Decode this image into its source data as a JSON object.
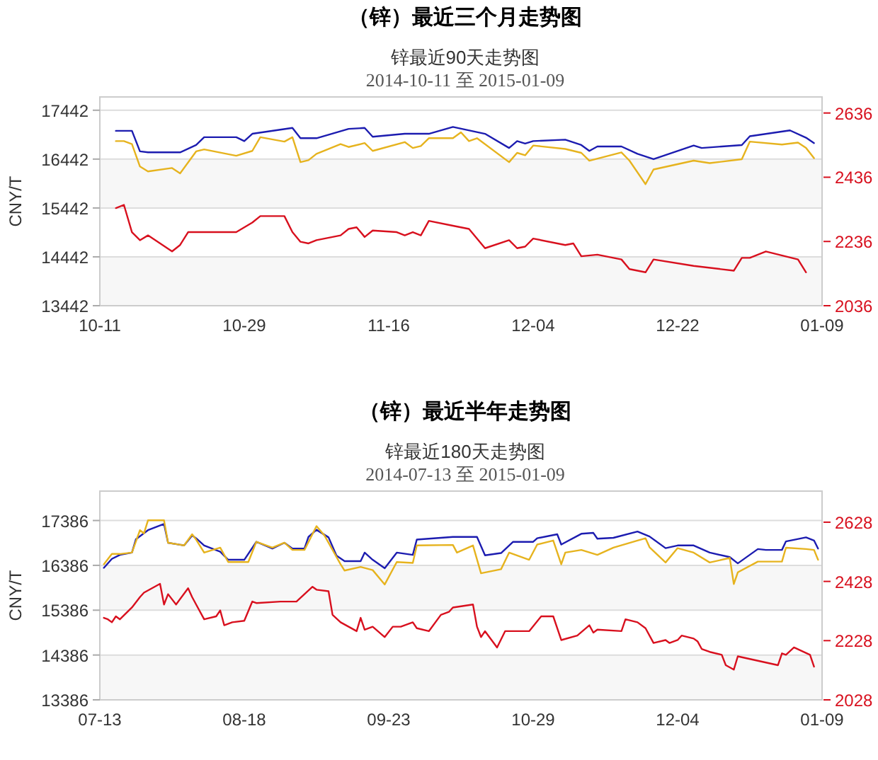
{
  "chart_data": [
    {
      "type": "line",
      "title": "（锌）最近三个月走势图",
      "subtitle": "锌最近90天走势图",
      "annotations": [
        "2014-10-11 至 2015-01-09"
      ],
      "ylabel": "CNY/T",
      "xlim": [
        "2014-10-11",
        "2015-01-09"
      ],
      "xticks": [
        {
          "value": "2014-10-11",
          "label": "10-11"
        },
        {
          "value": "2014-10-29",
          "label": "10-29"
        },
        {
          "value": "2014-11-16",
          "label": "11-16"
        },
        {
          "value": "2014-12-04",
          "label": "12-04"
        },
        {
          "value": "2014-12-22",
          "label": "12-22"
        },
        {
          "value": "2015-01-09",
          "label": "01-09"
        }
      ],
      "ylim": [
        13442,
        17714
      ],
      "yticks": [
        13442,
        14442,
        15442,
        16442,
        17442
      ],
      "y2lim": [
        2036,
        2686
      ],
      "y2ticks": [
        2036,
        2236,
        2436,
        2636
      ],
      "grid": "y",
      "bands": [
        {
          "axis": "y",
          "from": 15442,
          "to": 16442,
          "color": "#f7f7f7"
        },
        {
          "axis": "y",
          "from": 13442,
          "to": 14442,
          "color": "#f7f7f7"
        }
      ],
      "series": [
        {
          "color": "#1c1cb0",
          "x": [
            "2014-10-13",
            "2014-10-15",
            "2014-10-16",
            "2014-10-17",
            "2014-10-21",
            "2014-10-23",
            "2014-10-24",
            "2014-10-28",
            "2014-10-29",
            "2014-10-30",
            "2014-11-04",
            "2014-11-05",
            "2014-11-07",
            "2014-11-11",
            "2014-11-13",
            "2014-11-14",
            "2014-11-18",
            "2014-11-21",
            "2014-11-24",
            "2014-11-28",
            "2014-12-01",
            "2014-12-02",
            "2014-12-03",
            "2014-12-04",
            "2014-12-08",
            "2014-12-10",
            "2014-12-11",
            "2014-12-12",
            "2014-12-15",
            "2014-12-17",
            "2014-12-19",
            "2014-12-24",
            "2014-12-25",
            "2014-12-30",
            "2014-12-31",
            "2015-01-05",
            "2015-01-07",
            "2015-01-08"
          ],
          "values": [
            17020,
            17020,
            16600,
            16580,
            16580,
            16730,
            16890,
            16890,
            16810,
            16960,
            17080,
            16870,
            16870,
            17060,
            17080,
            16900,
            16960,
            16960,
            17100,
            16960,
            16670,
            16810,
            16760,
            16810,
            16840,
            16730,
            16610,
            16700,
            16700,
            16550,
            16440,
            16720,
            16670,
            16730,
            16910,
            17030,
            16880,
            16770
          ]
        },
        {
          "color": "#e6b31e",
          "x": [
            "2014-10-13",
            "2014-10-14",
            "2014-10-15",
            "2014-10-16",
            "2014-10-17",
            "2014-10-20",
            "2014-10-21",
            "2014-10-23",
            "2014-10-24",
            "2014-10-28",
            "2014-10-30",
            "2014-10-31",
            "2014-11-03",
            "2014-11-04",
            "2014-11-05",
            "2014-11-06",
            "2014-11-07",
            "2014-11-10",
            "2014-11-11",
            "2014-11-13",
            "2014-11-14",
            "2014-11-18",
            "2014-11-19",
            "2014-11-20",
            "2014-11-21",
            "2014-11-24",
            "2014-11-25",
            "2014-11-26",
            "2014-11-27",
            "2014-12-01",
            "2014-12-02",
            "2014-12-03",
            "2014-12-04",
            "2014-12-08",
            "2014-12-10",
            "2014-12-11",
            "2014-12-15",
            "2014-12-16",
            "2014-12-18",
            "2014-12-19",
            "2014-12-24",
            "2014-12-26",
            "2014-12-30",
            "2014-12-31",
            "2015-01-04",
            "2015-01-06",
            "2015-01-07",
            "2015-01-08"
          ],
          "values": [
            16810,
            16810,
            16750,
            16290,
            16190,
            16260,
            16150,
            16600,
            16640,
            16510,
            16610,
            16890,
            16800,
            16890,
            16380,
            16420,
            16550,
            16750,
            16690,
            16770,
            16610,
            16790,
            16670,
            16710,
            16870,
            16870,
            16990,
            16810,
            16870,
            16380,
            16570,
            16520,
            16720,
            16650,
            16570,
            16410,
            16580,
            16410,
            15930,
            16230,
            16410,
            16360,
            16440,
            16800,
            16740,
            16780,
            16670,
            16460
          ]
        },
        {
          "color": "#d8101e",
          "axis": "y2",
          "x": [
            "2014-10-13",
            "2014-10-14",
            "2014-10-15",
            "2014-10-16",
            "2014-10-17",
            "2014-10-20",
            "2014-10-21",
            "2014-10-22",
            "2014-10-28",
            "2014-10-29",
            "2014-10-30",
            "2014-10-31",
            "2014-11-03",
            "2014-11-04",
            "2014-11-05",
            "2014-11-06",
            "2014-11-07",
            "2014-11-10",
            "2014-11-11",
            "2014-11-12",
            "2014-11-13",
            "2014-11-14",
            "2014-11-17",
            "2014-11-18",
            "2014-11-19",
            "2014-11-20",
            "2014-11-21",
            "2014-11-24",
            "2014-11-25",
            "2014-11-26",
            "2014-11-28",
            "2014-12-01",
            "2014-12-02",
            "2014-12-03",
            "2014-12-04",
            "2014-12-08",
            "2014-12-09",
            "2014-12-10",
            "2014-12-12",
            "2014-12-15",
            "2014-12-16",
            "2014-12-17",
            "2014-12-18",
            "2014-12-19",
            "2014-12-24",
            "2014-12-29",
            "2014-12-30",
            "2014-12-31",
            "2015-01-02",
            "2015-01-06",
            "2015-01-07"
          ],
          "values": [
            2340,
            2350,
            2265,
            2240,
            2255,
            2205,
            2225,
            2265,
            2265,
            2280,
            2295,
            2315,
            2315,
            2265,
            2235,
            2230,
            2240,
            2255,
            2275,
            2280,
            2250,
            2270,
            2265,
            2255,
            2265,
            2255,
            2300,
            2285,
            2280,
            2275,
            2215,
            2240,
            2215,
            2220,
            2245,
            2225,
            2230,
            2190,
            2195,
            2180,
            2150,
            2145,
            2140,
            2180,
            2160,
            2145,
            2185,
            2185,
            2205,
            2180,
            2140
          ]
        }
      ]
    },
    {
      "type": "line",
      "title": "（锌）最近半年走势图",
      "subtitle": "锌最近180天走势图",
      "annotations": [
        "2014-07-13 至 2015-01-09"
      ],
      "ylabel": "CNY/T",
      "xlim": [
        "2014-07-13",
        "2015-01-09"
      ],
      "xticks": [
        {
          "value": "2014-07-13",
          "label": "07-13"
        },
        {
          "value": "2014-08-18",
          "label": "08-18"
        },
        {
          "value": "2014-09-23",
          "label": "09-23"
        },
        {
          "value": "2014-10-29",
          "label": "10-29"
        },
        {
          "value": "2014-12-04",
          "label": "12-04"
        },
        {
          "value": "2015-01-09",
          "label": "01-09"
        }
      ],
      "ylim": [
        13386,
        18042
      ],
      "yticks": [
        13386,
        14386,
        15386,
        16386,
        17386
      ],
      "y2lim": [
        2028,
        2733
      ],
      "y2ticks": [
        2028,
        2228,
        2428,
        2628
      ],
      "grid": "y",
      "bands": [
        {
          "axis": "y",
          "from": 15386,
          "to": 16386,
          "color": "#f7f7f7"
        },
        {
          "axis": "y",
          "from": 13386,
          "to": 14386,
          "color": "#f7f7f7"
        }
      ],
      "series": [
        {
          "color": "#1c1cb0",
          "x": [
            "2014-07-14",
            "2014-07-16",
            "2014-07-18",
            "2014-07-21",
            "2014-07-22",
            "2014-07-25",
            "2014-07-29",
            "2014-07-30",
            "2014-08-03",
            "2014-08-05",
            "2014-08-06",
            "2014-08-08",
            "2014-08-12",
            "2014-08-14",
            "2014-08-18",
            "2014-08-21",
            "2014-08-25",
            "2014-08-28",
            "2014-08-30",
            "2014-09-02",
            "2014-09-03",
            "2014-09-05",
            "2014-09-08",
            "2014-09-10",
            "2014-09-12",
            "2014-09-16",
            "2014-09-17",
            "2014-09-19",
            "2014-09-22",
            "2014-09-25",
            "2014-09-29",
            "2014-09-30",
            "2014-10-09",
            "2014-10-15",
            "2014-10-17",
            "2014-10-21",
            "2014-10-24",
            "2014-10-29",
            "2014-10-30",
            "2014-11-04",
            "2014-11-05",
            "2014-11-10",
            "2014-11-13",
            "2014-11-14",
            "2014-11-18",
            "2014-11-24",
            "2014-11-27",
            "2014-12-01",
            "2014-12-04",
            "2014-12-08",
            "2014-12-12",
            "2014-12-17",
            "2014-12-19",
            "2014-12-24",
            "2014-12-26",
            "2014-12-30",
            "2014-12-31",
            "2015-01-05",
            "2015-01-07",
            "2015-01-08"
          ],
          "values": [
            16330,
            16530,
            16620,
            16670,
            16970,
            17170,
            17310,
            16890,
            16830,
            17050,
            16990,
            16830,
            16690,
            16510,
            16510,
            16910,
            16760,
            16890,
            16760,
            16760,
            17020,
            17180,
            17010,
            16600,
            16480,
            16480,
            16670,
            16510,
            16320,
            16670,
            16620,
            16960,
            17020,
            17020,
            16610,
            16660,
            16910,
            16910,
            16990,
            17080,
            16850,
            17090,
            17110,
            16980,
            17000,
            17140,
            17030,
            16770,
            16830,
            16830,
            16670,
            16570,
            16430,
            16750,
            16730,
            16730,
            16920,
            17010,
            16940,
            16760
          ]
        },
        {
          "color": "#e6b31e",
          "x": [
            "2014-07-14",
            "2014-07-16",
            "2014-07-18",
            "2014-07-21",
            "2014-07-23",
            "2014-07-24",
            "2014-07-25",
            "2014-07-29",
            "2014-07-30",
            "2014-08-03",
            "2014-08-05",
            "2014-08-06",
            "2014-08-08",
            "2014-08-12",
            "2014-08-14",
            "2014-08-19",
            "2014-08-21",
            "2014-08-25",
            "2014-08-28",
            "2014-08-30",
            "2014-09-02",
            "2014-09-05",
            "2014-09-07",
            "2014-09-11",
            "2014-09-12",
            "2014-09-16",
            "2014-09-19",
            "2014-09-22",
            "2014-09-25",
            "2014-09-29",
            "2014-09-30",
            "2014-10-09",
            "2014-10-10",
            "2014-10-14",
            "2014-10-16",
            "2014-10-21",
            "2014-10-23",
            "2014-10-28",
            "2014-10-30",
            "2014-11-03",
            "2014-11-05",
            "2014-11-06",
            "2014-11-10",
            "2014-11-14",
            "2014-11-18",
            "2014-11-24",
            "2014-11-26",
            "2014-11-27",
            "2014-12-01",
            "2014-12-04",
            "2014-12-08",
            "2014-12-12",
            "2014-12-17",
            "2014-12-18",
            "2014-12-19",
            "2014-12-24",
            "2014-12-30",
            "2014-12-31",
            "2015-01-05",
            "2015-01-07",
            "2015-01-08"
          ],
          "values": [
            16410,
            16640,
            16640,
            16670,
            17170,
            17100,
            17390,
            17390,
            16890,
            16830,
            17080,
            16960,
            16670,
            16780,
            16460,
            16460,
            16910,
            16780,
            16890,
            16730,
            16730,
            17260,
            17050,
            16410,
            16270,
            16350,
            16280,
            15960,
            16460,
            16440,
            16830,
            16840,
            16670,
            16830,
            16210,
            16300,
            16670,
            16510,
            16850,
            16940,
            16410,
            16670,
            16730,
            16620,
            16780,
            16940,
            16990,
            16790,
            16450,
            16770,
            16670,
            16450,
            16550,
            15970,
            16230,
            16470,
            16470,
            16780,
            16750,
            16730,
            16510
          ]
        },
        {
          "color": "#d8101e",
          "axis": "y2",
          "x": [
            "2014-07-14",
            "2014-07-15",
            "2014-07-16",
            "2014-07-17",
            "2014-07-18",
            "2014-07-21",
            "2014-07-23",
            "2014-07-24",
            "2014-07-28",
            "2014-07-29",
            "2014-07-30",
            "2014-08-01",
            "2014-08-04",
            "2014-08-05",
            "2014-08-06",
            "2014-08-08",
            "2014-08-11",
            "2014-08-12",
            "2014-08-13",
            "2014-08-15",
            "2014-08-18",
            "2014-08-20",
            "2014-08-21",
            "2014-08-27",
            "2014-08-31",
            "2014-09-02",
            "2014-09-04",
            "2014-09-05",
            "2014-09-08",
            "2014-09-09",
            "2014-09-11",
            "2014-09-13",
            "2014-09-15",
            "2014-09-16",
            "2014-09-17",
            "2014-09-19",
            "2014-09-22",
            "2014-09-24",
            "2014-09-26",
            "2014-09-29",
            "2014-09-30",
            "2014-10-03",
            "2014-10-06",
            "2014-10-08",
            "2014-10-09",
            "2014-10-14",
            "2014-10-15",
            "2014-10-16",
            "2014-10-17",
            "2014-10-20",
            "2014-10-22",
            "2014-10-28",
            "2014-10-31",
            "2014-11-03",
            "2014-11-05",
            "2014-11-09",
            "2014-11-12",
            "2014-11-13",
            "2014-11-14",
            "2014-11-20",
            "2014-11-21",
            "2014-11-24",
            "2014-11-26",
            "2014-11-28",
            "2014-12-01",
            "2014-12-02",
            "2014-12-04",
            "2014-12-05",
            "2014-12-08",
            "2014-12-09",
            "2014-12-10",
            "2014-12-12",
            "2014-12-15",
            "2014-12-16",
            "2014-12-18",
            "2014-12-19",
            "2014-12-29",
            "2014-12-30",
            "2014-12-31",
            "2015-01-02",
            "2015-01-06",
            "2015-01-07"
          ],
          "values": [
            2305,
            2300,
            2290,
            2310,
            2300,
            2340,
            2375,
            2390,
            2420,
            2350,
            2385,
            2350,
            2405,
            2375,
            2350,
            2300,
            2310,
            2330,
            2280,
            2290,
            2295,
            2360,
            2355,
            2360,
            2360,
            2385,
            2410,
            2400,
            2395,
            2315,
            2290,
            2275,
            2260,
            2305,
            2265,
            2275,
            2240,
            2275,
            2275,
            2290,
            2270,
            2260,
            2315,
            2325,
            2340,
            2350,
            2275,
            2240,
            2260,
            2205,
            2260,
            2260,
            2310,
            2310,
            2230,
            2245,
            2280,
            2255,
            2265,
            2260,
            2300,
            2290,
            2270,
            2220,
            2230,
            2220,
            2230,
            2245,
            2235,
            2225,
            2200,
            2190,
            2180,
            2145,
            2130,
            2175,
            2145,
            2185,
            2180,
            2205,
            2180,
            2140
          ]
        }
      ]
    }
  ]
}
